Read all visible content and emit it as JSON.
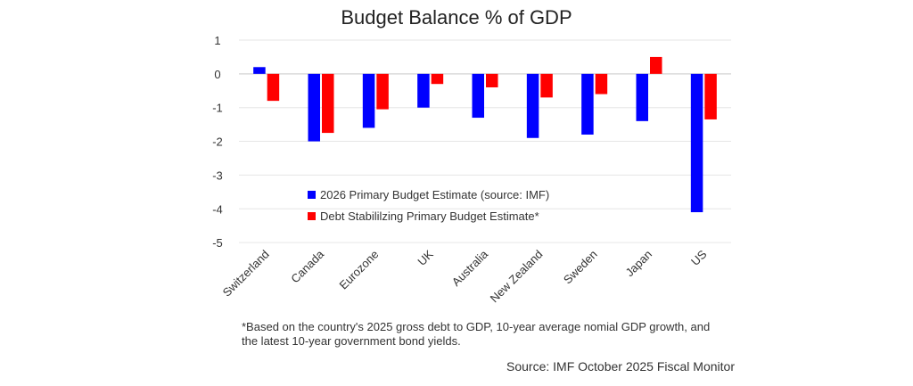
{
  "chart_data": {
    "type": "bar",
    "title": "Budget Balance % of GDP",
    "xlabel": "",
    "ylabel": "",
    "ylim": [
      -5,
      1
    ],
    "yticks": [
      "1",
      "0",
      "-1",
      "-2",
      "-3",
      "-4",
      "-5"
    ],
    "grid": true,
    "legend_position": "bottom-left inside",
    "categories": [
      "Switzerland",
      "Canada",
      "Eurozone",
      "UK",
      "Australia",
      "New Zealand",
      "Sweden",
      "Japan",
      "US"
    ],
    "series": [
      {
        "name": "2026 Primary Budget Estimate (source: IMF)",
        "color": "#0000ff",
        "values": [
          0.2,
          -2.0,
          -1.6,
          -1.0,
          -1.3,
          -1.9,
          -1.8,
          -1.4,
          -4.1
        ]
      },
      {
        "name": "Debt Stabililzing Primary Budget Estimate*",
        "color": "#ff0000",
        "values": [
          -0.8,
          -1.75,
          -1.05,
          -0.3,
          -0.4,
          -0.7,
          -0.6,
          0.5,
          -1.35
        ]
      }
    ]
  },
  "footnote": "*Based on the country's 2025 gross debt to GDP, 10-year average nomial GDP growth, and the latest 10-year government bond yields.",
  "source": "Source: IMF October 2025 Fiscal Monitor"
}
